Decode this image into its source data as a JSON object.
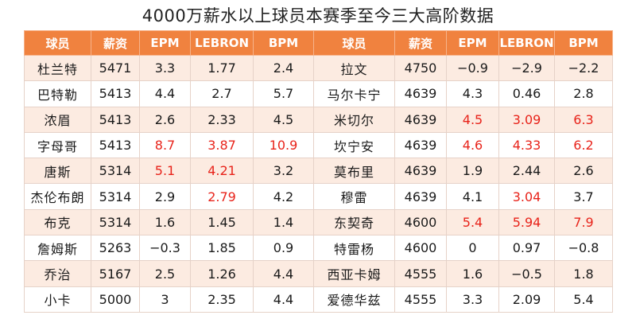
{
  "title": "4000万薪水以上球员本赛季至今三大高阶数据",
  "headers": [
    "球员",
    "薪资",
    "EPM",
    "LEBRON",
    "BPM",
    "球员",
    "薪资",
    "EPM",
    "LEBRON",
    "BPM"
  ],
  "rows": [
    {
      "cells": [
        "杜兰特",
        "5471",
        "3.3",
        "1.77",
        "2.4",
        "拉文",
        "4750",
        "−0.9",
        "−2.9",
        "−2.2"
      ],
      "red": []
    },
    {
      "cells": [
        "巴特勒",
        "5413",
        "4.4",
        "2.7",
        "5.7",
        "马尔卡宁",
        "4639",
        "4.3",
        "0.46",
        "2.8"
      ],
      "red": []
    },
    {
      "cells": [
        "浓眉",
        "5413",
        "2.6",
        "2.33",
        "4.5",
        "米切尔",
        "4639",
        "4.5",
        "3.09",
        "6.3"
      ],
      "red": [
        7,
        8,
        9
      ]
    },
    {
      "cells": [
        "字母哥",
        "5413",
        "8.7",
        "3.87",
        "10.9",
        "坎宁安",
        "4639",
        "4.6",
        "4.33",
        "6.2"
      ],
      "red": [
        2,
        3,
        4,
        7,
        8,
        9
      ]
    },
    {
      "cells": [
        "唐斯",
        "5314",
        "5.1",
        "4.21",
        "3.2",
        "莫布里",
        "4639",
        "1.9",
        "2.44",
        "2.6"
      ],
      "red": [
        2,
        3
      ]
    },
    {
      "cells": [
        "杰伦布朗",
        "5314",
        "2.9",
        "2.79",
        "4.2",
        "穆雷",
        "4639",
        "4.1",
        "3.04",
        "3.7"
      ],
      "red": [
        3,
        8
      ]
    },
    {
      "cells": [
        "布克",
        "5314",
        "1.6",
        "1.45",
        "1.4",
        "东契奇",
        "4600",
        "5.4",
        "5.94",
        "7.9"
      ],
      "red": [
        7,
        8,
        9
      ]
    },
    {
      "cells": [
        "詹姆斯",
        "5263",
        "−0.3",
        "1.85",
        "0.9",
        "特雷杨",
        "4600",
        "0",
        "0.97",
        "−0.8"
      ],
      "red": []
    },
    {
      "cells": [
        "乔治",
        "5167",
        "2.5",
        "1.26",
        "4.4",
        "西亚卡姆",
        "4555",
        "1.6",
        "−0.5",
        "1.8"
      ],
      "red": []
    },
    {
      "cells": [
        "小卡",
        "5000",
        "3",
        "2.35",
        "4.4",
        "爱德华兹",
        "4555",
        "3.3",
        "2.09",
        "5.4"
      ],
      "red": []
    }
  ]
}
